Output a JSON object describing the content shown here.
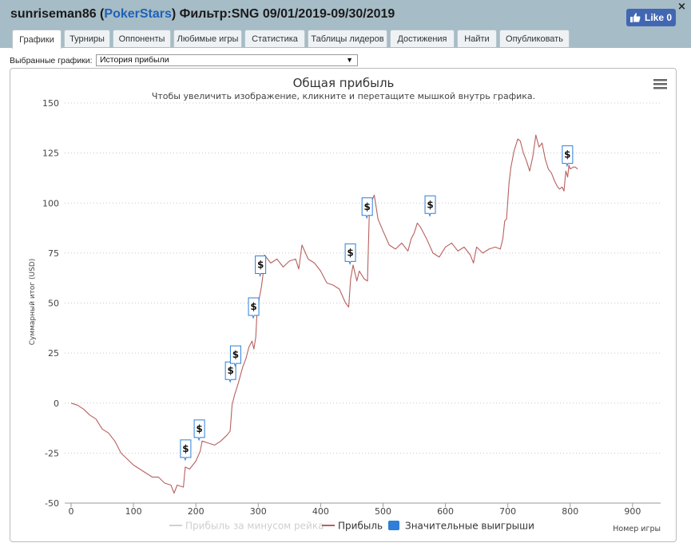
{
  "header": {
    "user": "sunriseman86",
    "site": "PokerStars",
    "filter_label": "Фильтр:",
    "filter_value": "SNG 09/01/2019-09/30/2019",
    "like_label": "Like 0",
    "close_symbol": "×"
  },
  "tabs": [
    {
      "label": "Графики",
      "active": true
    },
    {
      "label": "Турниры"
    },
    {
      "label": "Оппоненты"
    },
    {
      "label": "Любимые игры"
    },
    {
      "label": "Статистика"
    },
    {
      "label": "Таблицы лидеров"
    },
    {
      "label": "Достижения"
    },
    {
      "label": "Найти"
    },
    {
      "label": "Опубликовать"
    }
  ],
  "selector": {
    "label": "Выбранные графики:",
    "value": "История прибыли"
  },
  "chart_data": {
    "type": "line",
    "title": "Общая прибыль",
    "subtitle": "Чтобы увеличить изображение, кликните и перетащите мышкой внутрь графика.",
    "xlabel": "Номер игры",
    "ylabel": "Суммарный итог (USD)",
    "xlim": [
      0,
      945
    ],
    "ylim": [
      -50,
      150
    ],
    "x_ticks": [
      0,
      100,
      200,
      300,
      400,
      500,
      600,
      700,
      800,
      900
    ],
    "y_ticks": [
      -50,
      -25,
      0,
      25,
      50,
      75,
      100,
      125,
      150
    ],
    "grid": true,
    "legend_position": "bottom",
    "legend": [
      {
        "label": "Прибыль за минусом рейка",
        "color": "#d0d0d0",
        "style": "line"
      },
      {
        "label": "Прибыль",
        "color": "#b86060",
        "style": "line"
      },
      {
        "label": "Значительные выигрыши",
        "color": "#2f7ed8",
        "style": "box"
      }
    ],
    "series": [
      {
        "name": "Прибыль",
        "color": "#b86060",
        "points": [
          [
            0,
            0
          ],
          [
            10,
            -1
          ],
          [
            20,
            -3
          ],
          [
            30,
            -6
          ],
          [
            40,
            -8
          ],
          [
            50,
            -13
          ],
          [
            60,
            -15
          ],
          [
            70,
            -19
          ],
          [
            80,
            -25
          ],
          [
            90,
            -28
          ],
          [
            100,
            -31
          ],
          [
            110,
            -33
          ],
          [
            120,
            -35
          ],
          [
            130,
            -37
          ],
          [
            140,
            -37
          ],
          [
            150,
            -40
          ],
          [
            160,
            -41
          ],
          [
            165,
            -45
          ],
          [
            170,
            -41
          ],
          [
            180,
            -42
          ],
          [
            183,
            -32
          ],
          [
            190,
            -33
          ],
          [
            200,
            -29
          ],
          [
            207,
            -24
          ],
          [
            210,
            -19
          ],
          [
            220,
            -20
          ],
          [
            230,
            -21
          ],
          [
            240,
            -19
          ],
          [
            250,
            -16
          ],
          [
            255,
            -14
          ],
          [
            258,
            -1
          ],
          [
            262,
            4
          ],
          [
            265,
            7
          ],
          [
            268,
            10
          ],
          [
            275,
            18
          ],
          [
            280,
            22
          ],
          [
            285,
            28
          ],
          [
            290,
            31
          ],
          [
            293,
            27
          ],
          [
            296,
            33
          ],
          [
            298,
            45
          ],
          [
            302,
            53
          ],
          [
            305,
            58
          ],
          [
            308,
            65
          ],
          [
            310,
            74
          ],
          [
            315,
            72
          ],
          [
            320,
            70
          ],
          [
            330,
            72
          ],
          [
            340,
            68
          ],
          [
            350,
            71
          ],
          [
            360,
            72
          ],
          [
            365,
            67
          ],
          [
            370,
            79
          ],
          [
            380,
            72
          ],
          [
            390,
            70
          ],
          [
            400,
            66
          ],
          [
            410,
            60
          ],
          [
            420,
            59
          ],
          [
            430,
            57
          ],
          [
            440,
            50
          ],
          [
            445,
            48
          ],
          [
            448,
            62
          ],
          [
            452,
            69
          ],
          [
            458,
            61
          ],
          [
            462,
            66
          ],
          [
            470,
            62
          ],
          [
            475,
            61
          ],
          [
            478,
            95
          ],
          [
            482,
            101
          ],
          [
            486,
            104
          ],
          [
            492,
            92
          ],
          [
            500,
            86
          ],
          [
            510,
            79
          ],
          [
            520,
            77
          ],
          [
            530,
            80
          ],
          [
            540,
            76
          ],
          [
            545,
            82
          ],
          [
            550,
            85
          ],
          [
            555,
            90
          ],
          [
            560,
            88
          ],
          [
            570,
            82
          ],
          [
            580,
            75
          ],
          [
            590,
            73
          ],
          [
            600,
            78
          ],
          [
            610,
            80
          ],
          [
            620,
            76
          ],
          [
            630,
            78
          ],
          [
            640,
            74
          ],
          [
            645,
            70
          ],
          [
            650,
            78
          ],
          [
            660,
            75
          ],
          [
            670,
            77
          ],
          [
            680,
            78
          ],
          [
            688,
            77
          ],
          [
            692,
            82
          ],
          [
            695,
            91
          ],
          [
            698,
            92
          ],
          [
            702,
            110
          ],
          [
            705,
            118
          ],
          [
            710,
            126
          ],
          [
            716,
            132
          ],
          [
            720,
            131
          ],
          [
            725,
            125
          ],
          [
            730,
            121
          ],
          [
            735,
            116
          ],
          [
            740,
            123
          ],
          [
            745,
            134
          ],
          [
            750,
            128
          ],
          [
            755,
            130
          ],
          [
            760,
            122
          ],
          [
            765,
            117
          ],
          [
            770,
            115
          ],
          [
            775,
            111
          ],
          [
            780,
            108
          ],
          [
            783,
            107
          ],
          [
            787,
            108
          ],
          [
            790,
            106
          ],
          [
            793,
            116
          ],
          [
            796,
            113
          ],
          [
            798,
            119
          ],
          [
            800,
            117
          ],
          [
            805,
            118
          ],
          [
            808,
            118
          ],
          [
            812,
            117
          ]
        ]
      }
    ],
    "significant_wins": [
      {
        "x": 183,
        "y": -32,
        "label": "$"
      },
      {
        "x": 205,
        "y": -22,
        "label": "$"
      },
      {
        "x": 255,
        "y": 7,
        "label": "$"
      },
      {
        "x": 263,
        "y": 15,
        "label": "$"
      },
      {
        "x": 292,
        "y": 39,
        "label": "$"
      },
      {
        "x": 303,
        "y": 60,
        "label": "$"
      },
      {
        "x": 447,
        "y": 66,
        "label": "$"
      },
      {
        "x": 474,
        "y": 89,
        "label": "$"
      },
      {
        "x": 575,
        "y": 90,
        "label": "$"
      },
      {
        "x": 795,
        "y": 115,
        "label": "$"
      }
    ],
    "menu_icon": "hamburger-icon"
  }
}
